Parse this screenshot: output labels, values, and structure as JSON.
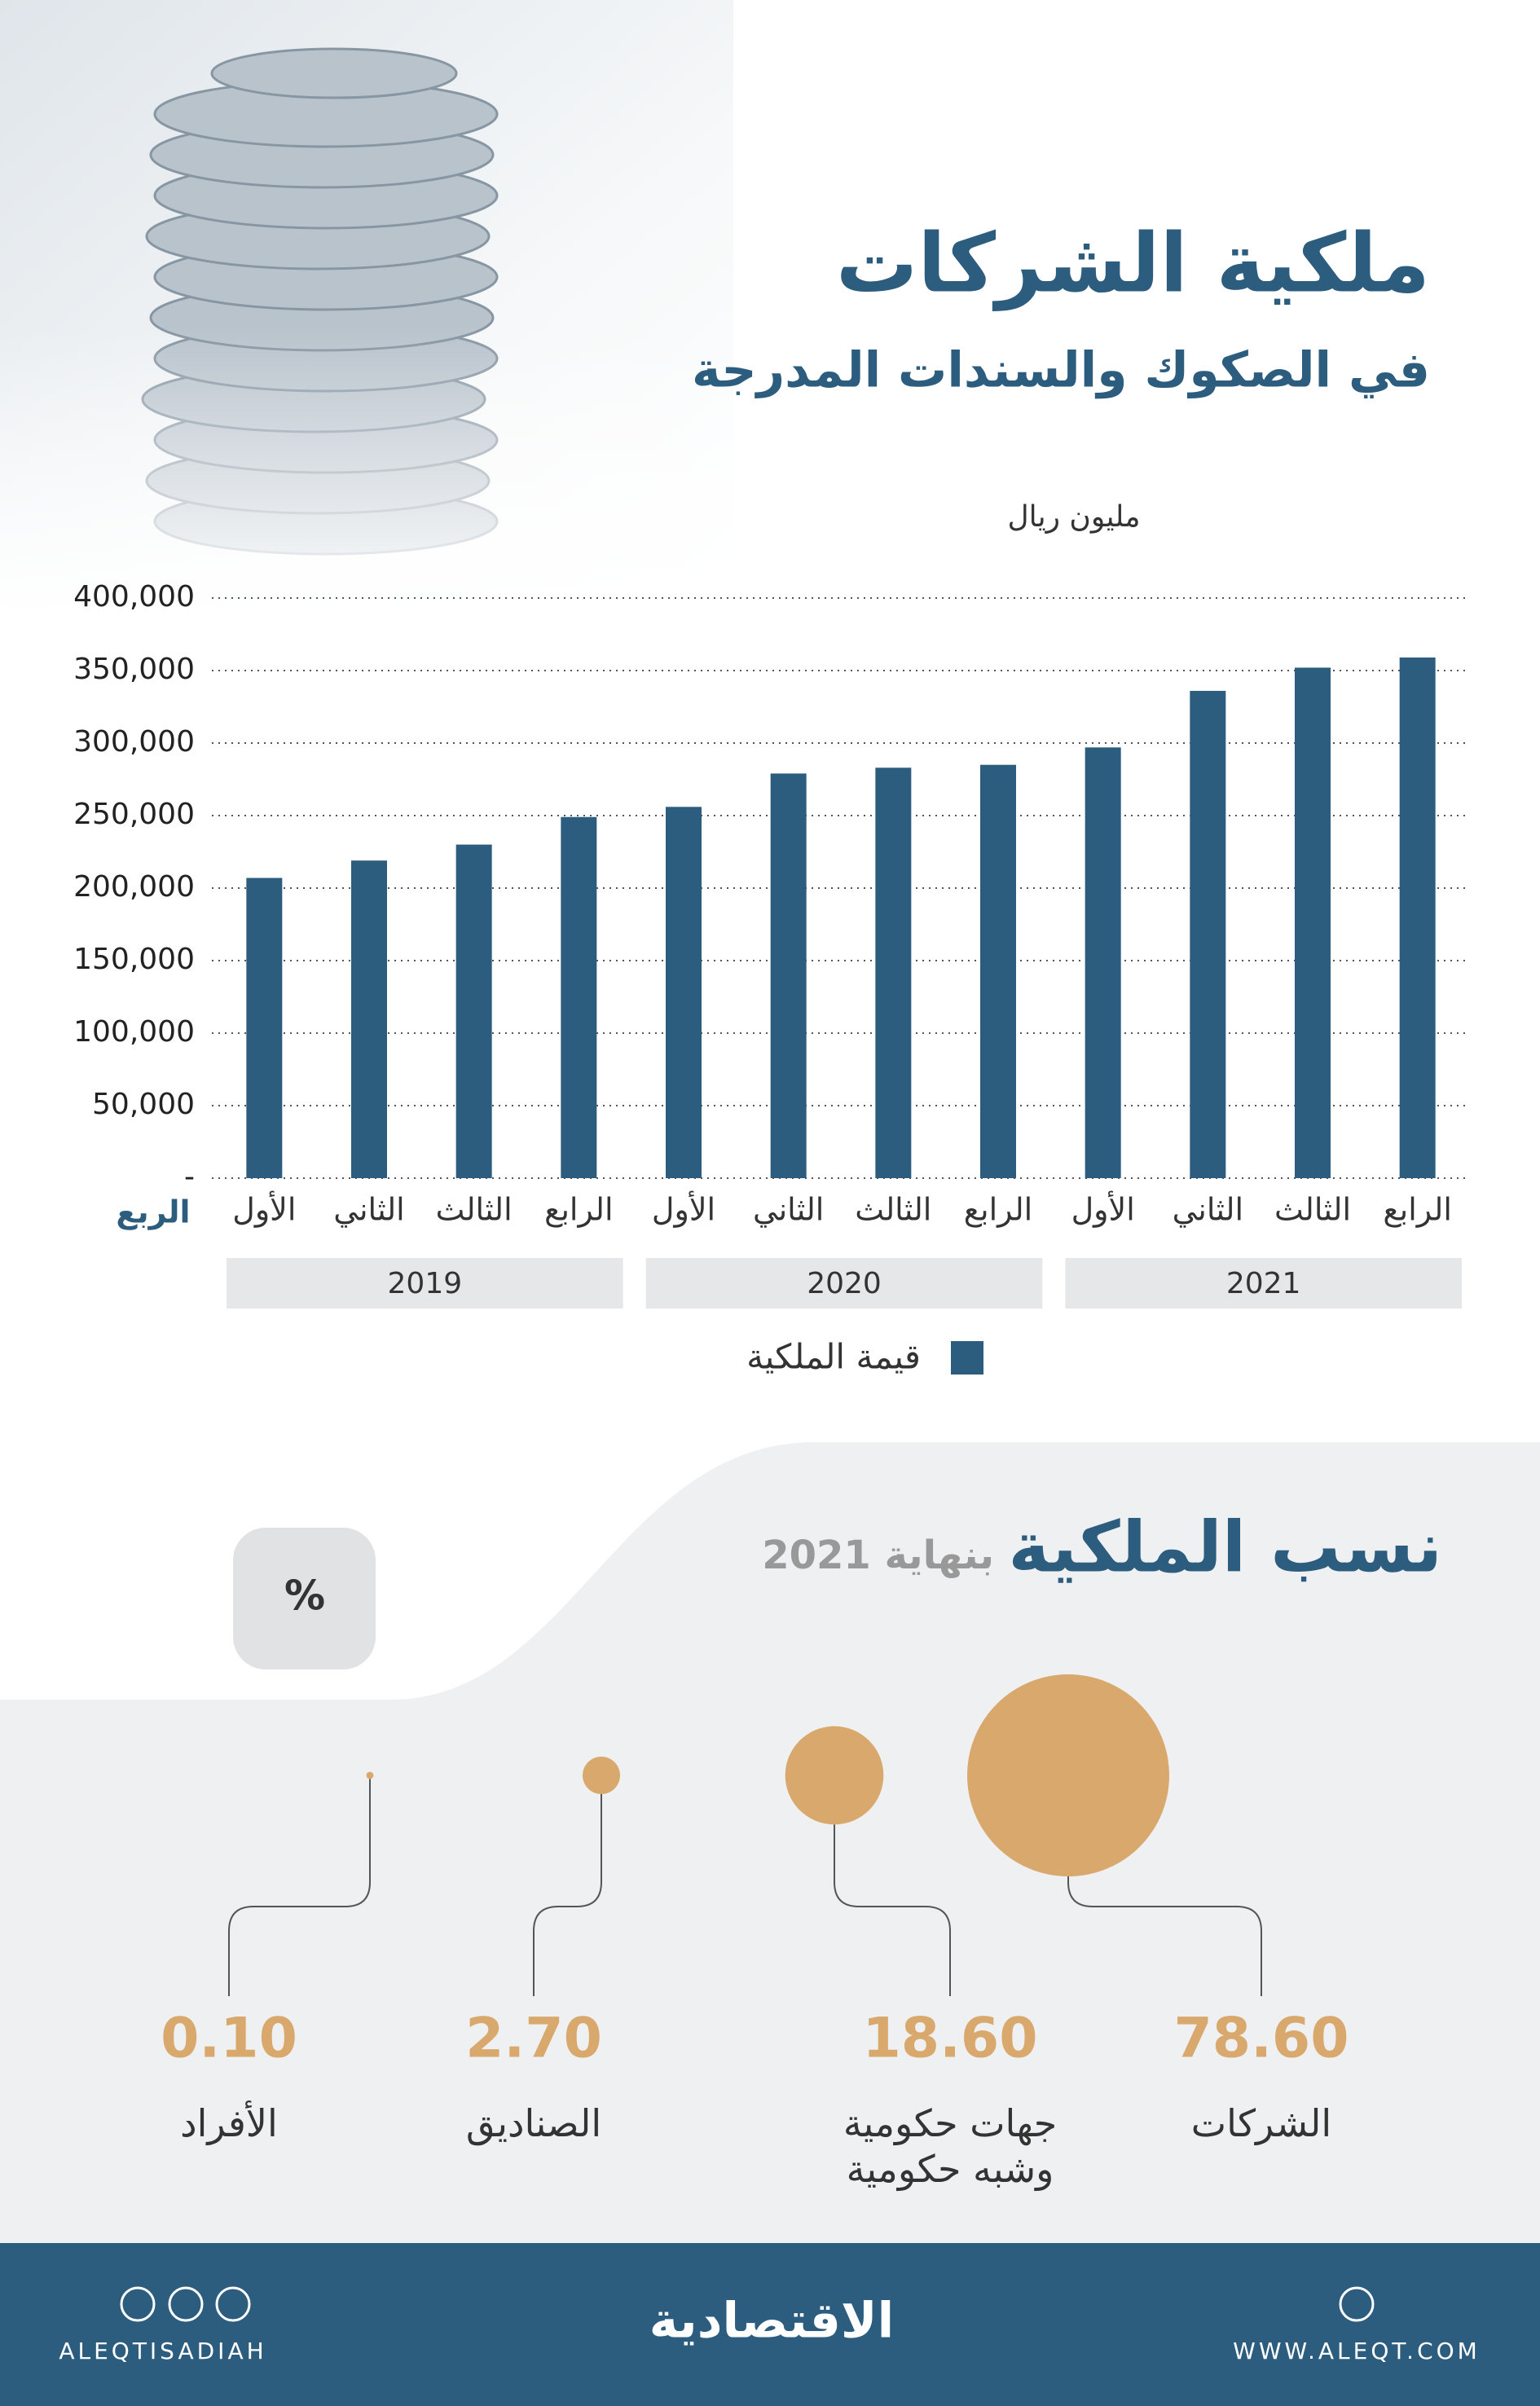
{
  "header": {
    "title": "ملكية الشركات",
    "subtitle": "في الصكوك والسندات المدرجة"
  },
  "chart_data": [
    {
      "type": "bar",
      "unit": "مليون ريال",
      "x_label": "الربع",
      "categories": [
        "الأول",
        "الثاني",
        "الثالث",
        "الرابع",
        "الأول",
        "الثاني",
        "الثالث",
        "الرابع",
        "الأول",
        "الثاني",
        "الثالث",
        "الرابع"
      ],
      "groups": [
        {
          "name": "2019",
          "size": 4
        },
        {
          "name": "2020",
          "size": 4
        },
        {
          "name": "2021",
          "size": 4
        }
      ],
      "series": [
        {
          "name": "قيمة الملكية",
          "color": "#2d5d7e",
          "values": [
            207000,
            219000,
            230000,
            249000,
            256000,
            279000,
            283000,
            285000,
            297000,
            336000,
            352000,
            359000
          ]
        }
      ],
      "ylim": [
        0,
        400000
      ],
      "yticks": [
        {
          "value": 0,
          "label": "-"
        },
        {
          "value": 50000,
          "label": "50,000"
        },
        {
          "value": 100000,
          "label": "100,000"
        },
        {
          "value": 150000,
          "label": "150,000"
        },
        {
          "value": 200000,
          "label": "200,000"
        },
        {
          "value": 250000,
          "label": "250,000"
        },
        {
          "value": 300000,
          "label": "300,000"
        },
        {
          "value": 350000,
          "label": "350,000"
        },
        {
          "value": 400000,
          "label": "400,000"
        }
      ],
      "grid": true
    },
    {
      "type": "bubble",
      "title": "نسب الملكية",
      "subtitle": "بنهاية 2021",
      "unit": "%",
      "color": "#d9a86d",
      "categories": [
        "الشركات",
        "جهات حكومية\nوشبه حكومية",
        "الصناديق",
        "الأفراد"
      ],
      "values": [
        78.6,
        18.6,
        2.7,
        0.1
      ],
      "value_labels": [
        "78.60",
        "18.60",
        "2.70",
        "0.10"
      ]
    }
  ],
  "footer": {
    "social": "ALEQTISADIAH",
    "logo": "الاقتصادية",
    "website": "WWW.ALEQT.COM"
  }
}
